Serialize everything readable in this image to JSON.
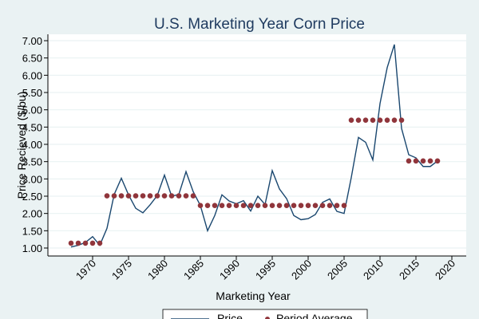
{
  "chart_data": {
    "type": "line",
    "title": "U.S. Marketing Year Corn Price",
    "xlabel": "Marketing Year",
    "ylabel": "Price Recieved ($/bu)",
    "xlim": [
      1966,
      2021
    ],
    "ylim": [
      0.8,
      7.3
    ],
    "x_ticks": [
      1970,
      1975,
      1980,
      1985,
      1990,
      1995,
      2000,
      2005,
      2010,
      2015,
      2020
    ],
    "y_ticks": [
      1.0,
      1.5,
      2.0,
      2.5,
      3.0,
      3.5,
      4.0,
      4.5,
      5.0,
      5.5,
      6.0,
      6.5,
      7.0
    ],
    "y_tick_labels": [
      "1.00",
      "1.50",
      "2.00",
      "2.50",
      "3.00",
      "3.50",
      "4.00",
      "4.50",
      "5.00",
      "5.50",
      "6.00",
      "6.50",
      "7.00"
    ],
    "grid": true,
    "legend_placement": "bottom",
    "x": [
      1967,
      1968,
      1969,
      1970,
      1971,
      1972,
      1973,
      1974,
      1975,
      1976,
      1977,
      1978,
      1979,
      1980,
      1981,
      1982,
      1983,
      1984,
      1985,
      1986,
      1987,
      1988,
      1989,
      1990,
      1991,
      1992,
      1993,
      1994,
      1995,
      1996,
      1997,
      1998,
      1999,
      2000,
      2001,
      2002,
      2003,
      2004,
      2005,
      2006,
      2007,
      2008,
      2009,
      2010,
      2011,
      2012,
      2013,
      2014,
      2015,
      2016,
      2017,
      2018
    ],
    "series": [
      {
        "name": "Price",
        "color": "#1a476f",
        "style": "line",
        "values": [
          1.03,
          1.08,
          1.16,
          1.33,
          1.08,
          1.57,
          2.55,
          3.02,
          2.54,
          2.15,
          2.02,
          2.25,
          2.52,
          3.11,
          2.5,
          2.55,
          3.21,
          2.63,
          2.23,
          1.5,
          1.94,
          2.54,
          2.36,
          2.28,
          2.37,
          2.07,
          2.5,
          2.26,
          3.24,
          2.71,
          2.43,
          1.94,
          1.82,
          1.85,
          1.97,
          2.32,
          2.42,
          2.06,
          2.0,
          3.04,
          4.2,
          4.06,
          3.55,
          5.18,
          6.22,
          6.89,
          4.46,
          3.7,
          3.61,
          3.36,
          3.36,
          3.52
        ]
      },
      {
        "name": "Period Average",
        "color": "#90353b",
        "style": "markers",
        "values": [
          1.14,
          1.14,
          1.14,
          1.14,
          1.14,
          2.51,
          2.51,
          2.51,
          2.51,
          2.51,
          2.51,
          2.51,
          2.51,
          2.51,
          2.51,
          2.51,
          2.51,
          2.51,
          2.23,
          2.23,
          2.23,
          2.23,
          2.23,
          2.23,
          2.23,
          2.23,
          2.23,
          2.23,
          2.23,
          2.23,
          2.23,
          2.23,
          2.23,
          2.23,
          2.23,
          2.23,
          2.23,
          2.23,
          2.23,
          4.7,
          4.7,
          4.7,
          4.7,
          4.7,
          4.7,
          4.7,
          4.7,
          3.52,
          3.52,
          3.52,
          3.52,
          3.52
        ]
      }
    ]
  }
}
